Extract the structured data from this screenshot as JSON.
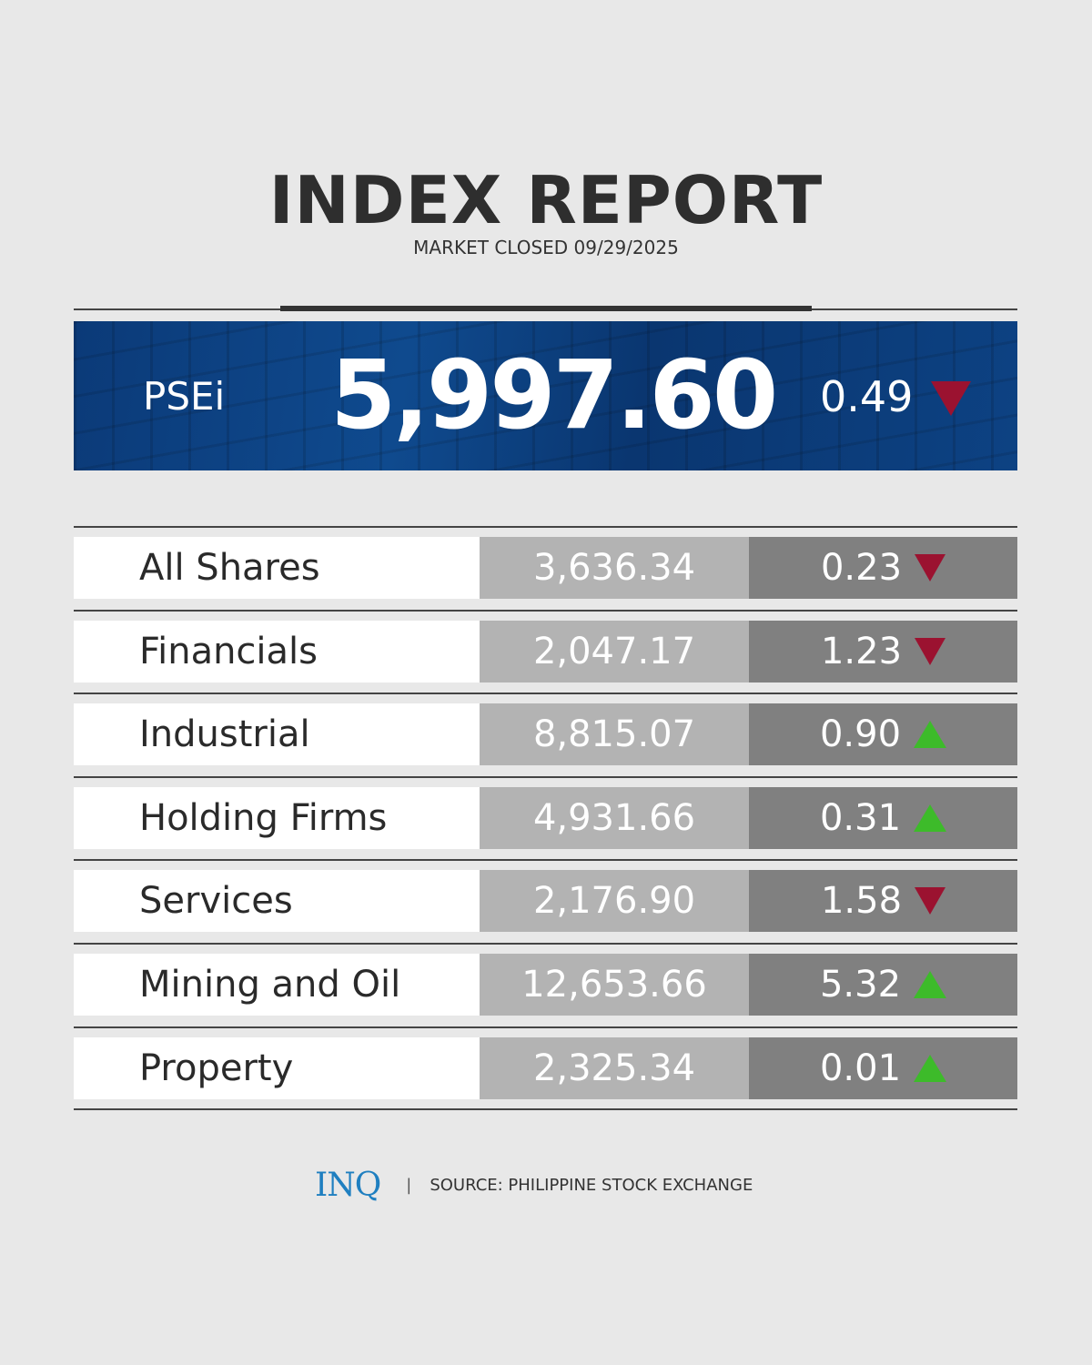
{
  "header": {
    "title": "INDEX REPORT",
    "subtitle": "MARKET CLOSED 09/29/2025"
  },
  "psei": {
    "label": "PSEi",
    "value": "5,997.60",
    "change": "0.49",
    "direction": "down"
  },
  "colors": {
    "down": "#9b1230",
    "up": "#3dbb2a",
    "hero": "#0f4a8e"
  },
  "rows": [
    {
      "name": "All Shares",
      "value": "3,636.34",
      "change": "0.23",
      "direction": "down"
    },
    {
      "name": "Financials",
      "value": "2,047.17",
      "change": "1.23",
      "direction": "down"
    },
    {
      "name": "Industrial",
      "value": "8,815.07",
      "change": "0.90",
      "direction": "up"
    },
    {
      "name": "Holding Firms",
      "value": "4,931.66",
      "change": "0.31",
      "direction": "up"
    },
    {
      "name": "Services",
      "value": "2,176.90",
      "change": "1.58",
      "direction": "down"
    },
    {
      "name": "Mining and Oil",
      "value": "12,653.66",
      "change": "5.32",
      "direction": "up"
    },
    {
      "name": "Property",
      "value": "2,325.34",
      "change": "0.01",
      "direction": "up"
    }
  ],
  "footer": {
    "logo": "INQ",
    "separator": "|",
    "source": "SOURCE: PHILIPPINE STOCK EXCHANGE"
  }
}
